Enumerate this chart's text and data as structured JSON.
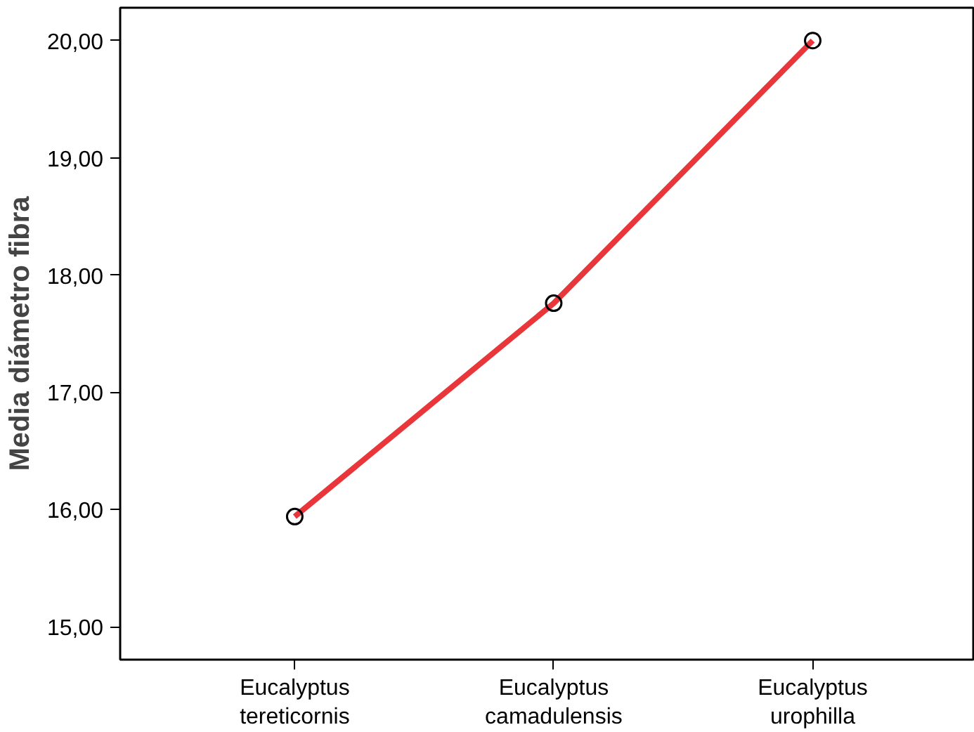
{
  "chart_data": {
    "type": "line",
    "ylabel": "Media diámetro fibra",
    "categories": [
      "Eucalyptus tereticornis",
      "Eucalyptus camadulensis",
      "Eucalyptus urophilla"
    ],
    "series": [
      {
        "color": "#e8363a",
        "values": [
          15.94,
          17.76,
          20.0
        ]
      }
    ],
    "ylim": [
      14.72,
      20.28
    ],
    "yticks": [
      {
        "value": 15,
        "label": "15,00"
      },
      {
        "value": 16,
        "label": "16,00"
      },
      {
        "value": 17,
        "label": "17,00"
      },
      {
        "value": 18,
        "label": "18,00"
      },
      {
        "value": 19,
        "label": "19,00"
      },
      {
        "value": 20,
        "label": "20,00"
      }
    ],
    "grid": false,
    "marker": "circle",
    "line_style": "solid"
  }
}
